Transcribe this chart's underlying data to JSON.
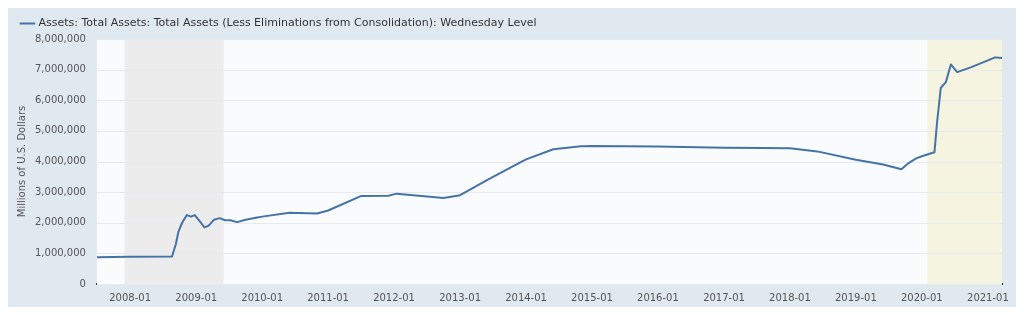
{
  "chart_data": {
    "type": "line",
    "ylabel": "Millions of U.S. Dollars",
    "legend": "top left",
    "grid": "y",
    "marker": "none",
    "line_style": "solid",
    "xlim": [
      "2007-07-01",
      "2021-03-20"
    ],
    "xticks": [
      "2008-01",
      "2009-01",
      "2010-01",
      "2011-01",
      "2012-01",
      "2013-01",
      "2014-01",
      "2015-01",
      "2016-01",
      "2017-01",
      "2018-01",
      "2019-01",
      "2020-01",
      "2021-01"
    ],
    "ylim": [
      0,
      8000000
    ],
    "yticks": [
      {
        "value": 0,
        "label": "0"
      },
      {
        "value": 1000000,
        "label": "1,000,000"
      },
      {
        "value": 2000000,
        "label": "2,000,000"
      },
      {
        "value": 3000000,
        "label": "3,000,000"
      },
      {
        "value": 4000000,
        "label": "4,000,000"
      },
      {
        "value": 5000000,
        "label": "5,000,000"
      },
      {
        "value": 6000000,
        "label": "6,000,000"
      },
      {
        "value": 7000000,
        "label": "7,000,000"
      },
      {
        "value": 8000000,
        "label": "8,000,000"
      }
    ],
    "bands": [
      {
        "axis": "x",
        "from": "2007-12-01",
        "to": "2009-06-01",
        "color": "#ececec"
      },
      {
        "axis": "x",
        "from": "2020-02-01",
        "to": "2021-03-20",
        "color": "#f5f4e0"
      }
    ],
    "series": [
      {
        "name": "Assets: Total Assets: Total Assets (Less Eliminations from Consolidation): Wednesday Level",
        "color": "#4572a7",
        "x": [
          "2007-07-01",
          "2008-01-01",
          "2008-08-20",
          "2008-09-10",
          "2008-09-24",
          "2008-10-15",
          "2008-11-10",
          "2008-12-03",
          "2008-12-24",
          "2009-01-20",
          "2009-02-15",
          "2009-03-10",
          "2009-04-10",
          "2009-05-10",
          "2009-06-10",
          "2009-07-10",
          "2009-08-15",
          "2009-10-01",
          "2010-01-01",
          "2010-06-01",
          "2010-11-01",
          "2011-01-01",
          "2011-07-01",
          "2011-12-01",
          "2012-01-15",
          "2012-06-01",
          "2012-10-01",
          "2013-01-01",
          "2013-06-01",
          "2014-01-01",
          "2014-06-01",
          "2014-11-01",
          "2015-01-01",
          "2016-01-01",
          "2017-01-01",
          "2018-01-01",
          "2018-06-01",
          "2019-01-01",
          "2019-06-01",
          "2019-09-10",
          "2019-10-20",
          "2019-12-01",
          "2020-01-01",
          "2020-03-11",
          "2020-03-25",
          "2020-04-15",
          "2020-05-13",
          "2020-06-10",
          "2020-07-15",
          "2020-10-01",
          "2021-01-01",
          "2021-02-10",
          "2021-03-20"
        ],
        "values": [
          870000,
          890000,
          900000,
          1300000,
          1700000,
          2000000,
          2250000,
          2200000,
          2250000,
          2050000,
          1850000,
          1900000,
          2100000,
          2150000,
          2080000,
          2080000,
          2020000,
          2100000,
          2200000,
          2330000,
          2300000,
          2400000,
          2870000,
          2880000,
          2950000,
          2870000,
          2810000,
          2900000,
          3400000,
          4070000,
          4400000,
          4500000,
          4510000,
          4490000,
          4450000,
          4430000,
          4330000,
          4060000,
          3900000,
          3750000,
          3950000,
          4100000,
          4170000,
          4300000,
          5250000,
          6400000,
          6590000,
          7170000,
          6920000,
          7080000,
          7300000,
          7400000,
          7380000
        ]
      }
    ]
  }
}
